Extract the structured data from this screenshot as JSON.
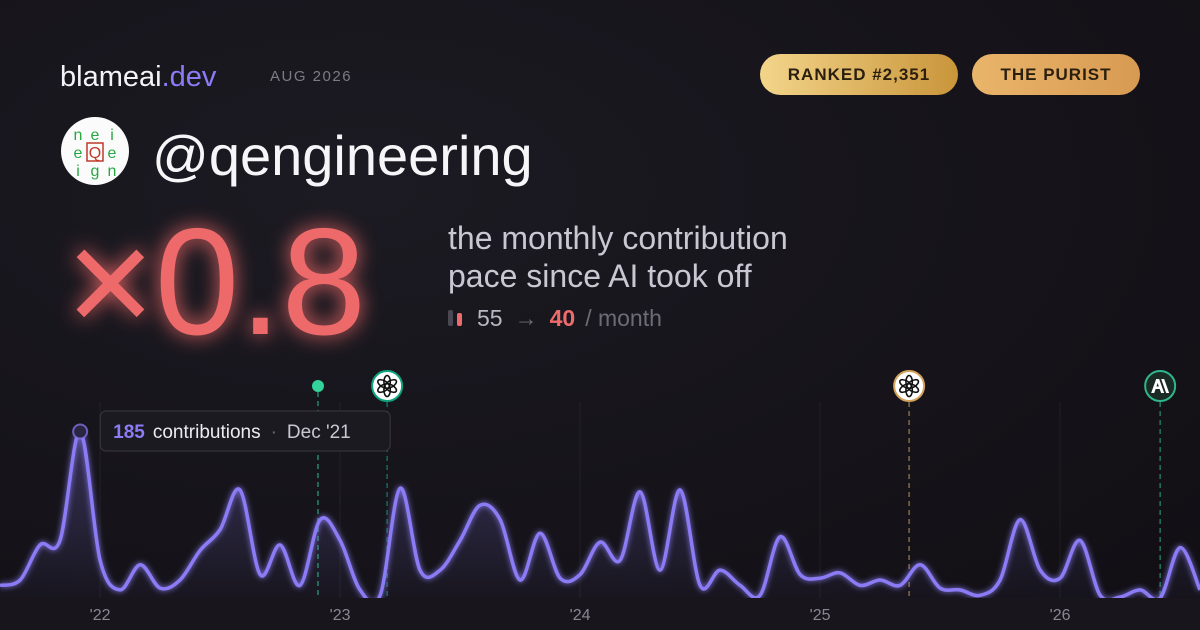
{
  "brand": {
    "name": "blameai",
    "tld": ".dev",
    "date": "AUG 2026"
  },
  "badges": [
    "RANKED #2,351",
    "THE PURIST"
  ],
  "avatar": {
    "rows": [
      "nei",
      "eQe",
      "ign"
    ]
  },
  "handle": "@qengineering",
  "multiplier": "×0.8",
  "caption": [
    "the monthly contribution",
    "pace since AI took off"
  ],
  "pace": {
    "before": 55,
    "arrow": "→",
    "after": 40,
    "unit": "/ month"
  },
  "chart_data": {
    "type": "line",
    "x": [
      2021.583,
      2021.667,
      2021.75,
      2021.833,
      2021.917,
      2022,
      2022.083,
      2022.167,
      2022.25,
      2022.333,
      2022.417,
      2022.5,
      2022.583,
      2022.667,
      2022.75,
      2022.833,
      2022.917,
      2023,
      2023.083,
      2023.167,
      2023.25,
      2023.333,
      2023.417,
      2023.5,
      2023.583,
      2023.667,
      2023.75,
      2023.833,
      2023.917,
      2024,
      2024.083,
      2024.167,
      2024.25,
      2024.333,
      2024.417,
      2024.5,
      2024.583,
      2024.667,
      2024.75,
      2024.833,
      2024.917,
      2025,
      2025.083,
      2025.167,
      2025.25,
      2025.333,
      2025.417,
      2025.5,
      2025.583,
      2025.667,
      2025.75,
      2025.833,
      2025.917,
      2026,
      2026.083,
      2026.167,
      2026.25,
      2026.333,
      2026.417,
      2026.5,
      2026.583
    ],
    "series": [
      {
        "color": "#8b7cf6",
        "values": [
          14,
          20,
          59,
          64,
          185,
          42,
          9,
          37,
          11,
          20,
          53,
          76,
          120,
          26,
          59,
          14,
          87,
          64,
          9,
          3,
          122,
          31,
          31,
          64,
          103,
          87,
          20,
          72,
          22,
          26,
          62,
          42,
          118,
          31,
          120,
          14,
          31,
          14,
          3,
          68,
          26,
          22,
          28,
          14,
          20,
          14,
          37,
          11,
          9,
          3,
          20,
          87,
          31,
          22,
          64,
          3,
          1,
          9,
          0,
          56,
          9
        ]
      }
    ],
    "xlim": [
      2021.583,
      2026.583
    ],
    "ylim": [
      0,
      200
    ],
    "xticks": [
      {
        "value": 2022,
        "label": "'22"
      },
      {
        "value": 2023,
        "label": "'23"
      },
      {
        "value": 2024,
        "label": "'24"
      },
      {
        "value": 2025,
        "label": "'25"
      },
      {
        "value": 2026,
        "label": "'26"
      }
    ],
    "grid": true,
    "highlight": {
      "label": "contributions",
      "separator": "·",
      "date": "Dec '21"
    },
    "events": [
      {
        "x": 2022.908,
        "color": "#34d399",
        "kind": "dot"
      },
      {
        "x": 2023.196,
        "color": "#10a37f",
        "kind": "openai"
      },
      {
        "x": 2025.371,
        "color": "#d4a15a",
        "kind": "openai"
      },
      {
        "x": 2026.417,
        "color": "#2fb68a",
        "kind": "anthropic"
      }
    ]
  }
}
